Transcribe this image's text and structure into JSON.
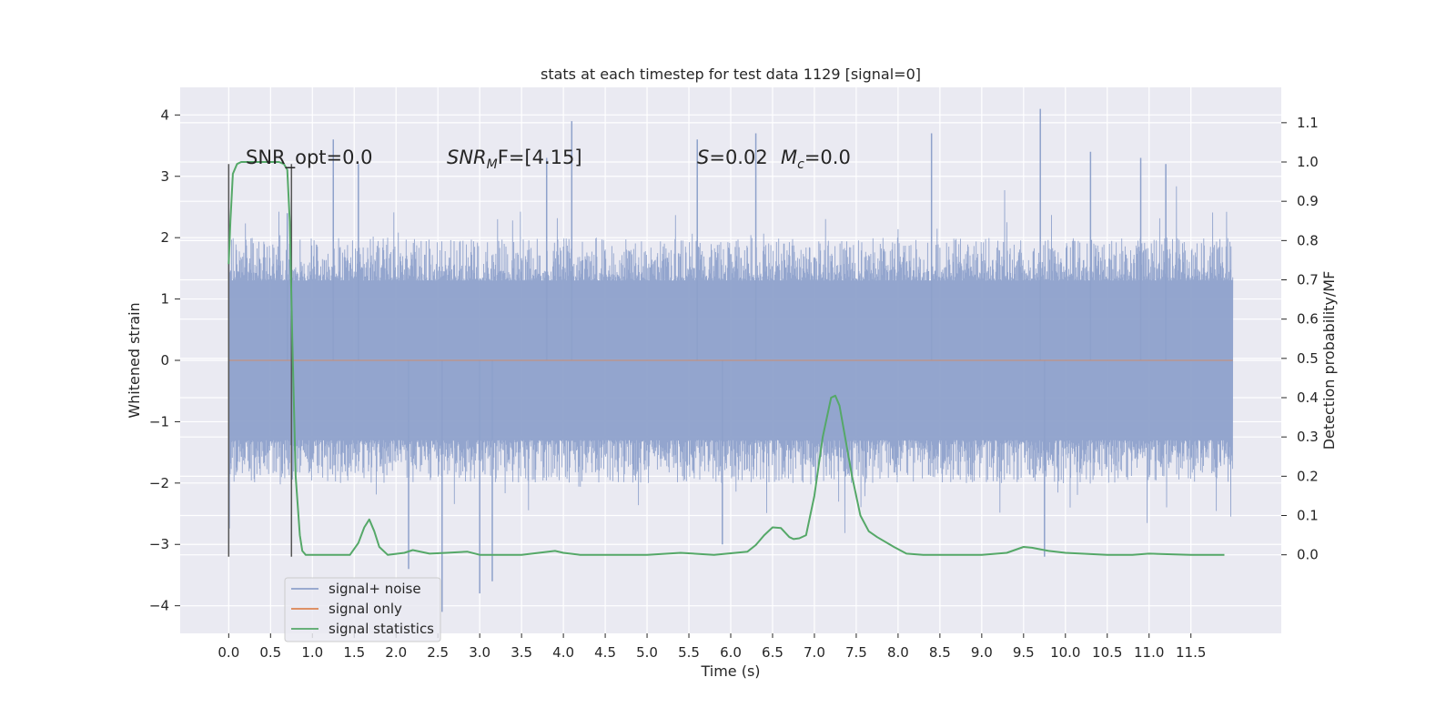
{
  "chart_data": {
    "type": "line",
    "title": "stats at each timestep for test data 1129 [signal=0]",
    "xlabel": "Time (s)",
    "ylabel": "Whitened strain",
    "ylabel_right": "Detection probability/MF",
    "xlim": [
      -0.58,
      12.58
    ],
    "ylim": [
      -4.45,
      4.45
    ],
    "ylim_right": [
      -0.2,
      1.19
    ],
    "x_ticks": [
      "0.0",
      "0.5",
      "1.0",
      "1.5",
      "2.0",
      "2.5",
      "3.0",
      "3.5",
      "4.0",
      "4.5",
      "5.0",
      "5.5",
      "6.0",
      "6.5",
      "7.0",
      "7.5",
      "8.0",
      "8.5",
      "9.0",
      "9.5",
      "10.0",
      "10.5",
      "11.0",
      "11.5"
    ],
    "y_ticks_left": [
      "4",
      "3",
      "2",
      "1",
      "0",
      "−1",
      "−2",
      "−3",
      "−4"
    ],
    "y_ticks_right": [
      "1.1",
      "1.0",
      "0.9",
      "0.8",
      "0.7",
      "0.6",
      "0.5",
      "0.4",
      "0.3",
      "0.2",
      "0.1",
      "0.0"
    ],
    "grid": true,
    "legend": {
      "placement": "lower-left",
      "entries": [
        "signal+ noise",
        "signal only",
        "signal statistics"
      ]
    },
    "annotations": {
      "snr_opt": "SNR_opt=0.0",
      "snr_mf_main": "SNR",
      "snr_mf_sub": "M",
      "snr_mf_rest": "F=[4.15]",
      "s_label": "S",
      "s_value": "=0.02",
      "mc_label": "M",
      "mc_sub": "c",
      "mc_value": "=0.0"
    },
    "noise_series": {
      "name": "signal+ noise",
      "x_range": [
        0.0,
        12.0
      ],
      "dense_band": [
        -1.3,
        1.3
      ],
      "typical_envelope": [
        -2.0,
        2.0
      ],
      "extreme_peaks": [
        {
          "x": 0.7,
          "y": 2.4
        },
        {
          "x": 1.55,
          "y": 3.2
        },
        {
          "x": 2.55,
          "y": -4.1
        },
        {
          "x": 3.0,
          "y": -3.8
        },
        {
          "x": 3.15,
          "y": -3.6
        },
        {
          "x": 4.1,
          "y": 3.9
        },
        {
          "x": 2.15,
          "y": -3.4
        },
        {
          "x": 5.6,
          "y": 3.6
        },
        {
          "x": 6.3,
          "y": 3.7
        },
        {
          "x": 9.7,
          "y": 4.1
        },
        {
          "x": 9.75,
          "y": -3.2
        },
        {
          "x": 10.3,
          "y": 3.4
        },
        {
          "x": 8.4,
          "y": 3.7
        },
        {
          "x": 11.2,
          "y": 3.2
        },
        {
          "x": 1.25,
          "y": 3.6
        },
        {
          "x": 10.9,
          "y": 3.3
        },
        {
          "x": 5.9,
          "y": -3.0
        },
        {
          "x": 3.8,
          "y": 3.3
        }
      ]
    },
    "signal_only": {
      "name": "signal only",
      "x": [
        0.0,
        12.0
      ],
      "y": [
        0.0,
        0.0
      ]
    },
    "signal_statistics": {
      "name": "signal statistics",
      "x": [
        0.0,
        0.02,
        0.05,
        0.1,
        0.15,
        0.2,
        0.3,
        0.5,
        0.6,
        0.66,
        0.7,
        0.73,
        0.76,
        0.8,
        0.85,
        0.88,
        0.92,
        1.0,
        1.2,
        1.45,
        1.55,
        1.62,
        1.68,
        1.74,
        1.8,
        1.9,
        2.1,
        2.2,
        2.4,
        2.6,
        2.85,
        3.0,
        3.5,
        3.9,
        4.0,
        4.2,
        5.0,
        5.4,
        5.8,
        6.2,
        6.3,
        6.4,
        6.5,
        6.6,
        6.7,
        6.75,
        6.82,
        6.9,
        7.0,
        7.1,
        7.2,
        7.25,
        7.3,
        7.35,
        7.45,
        7.55,
        7.65,
        7.75,
        7.95,
        8.1,
        8.3,
        8.6,
        9.0,
        9.3,
        9.5,
        9.6,
        9.8,
        10.0,
        10.5,
        10.8,
        11.0,
        11.5,
        11.9
      ],
      "y": [
        0.74,
        0.85,
        0.97,
        0.995,
        1.0,
        1.0,
        1.0,
        1.0,
        1.0,
        0.995,
        0.98,
        0.85,
        0.55,
        0.2,
        0.05,
        0.01,
        0.0,
        0.0,
        0.0,
        0.0,
        0.03,
        0.07,
        0.09,
        0.06,
        0.02,
        0.0,
        0.005,
        0.012,
        0.003,
        0.005,
        0.008,
        0.0,
        0.0,
        0.01,
        0.005,
        0.0,
        0.0,
        0.005,
        0.0,
        0.008,
        0.025,
        0.05,
        0.07,
        0.068,
        0.045,
        0.04,
        0.042,
        0.05,
        0.15,
        0.3,
        0.4,
        0.405,
        0.38,
        0.32,
        0.2,
        0.1,
        0.06,
        0.045,
        0.02,
        0.003,
        0.0,
        0.0,
        0.0,
        0.005,
        0.02,
        0.018,
        0.01,
        0.005,
        0.0,
        0.0,
        0.003,
        0.0,
        0.0
      ]
    },
    "vertical_markers": [
      {
        "x": 0.0,
        "y_range": [
          -3.2,
          3.2
        ]
      },
      {
        "x": 0.75,
        "y_range": [
          -3.2,
          3.2
        ]
      }
    ],
    "colors": {
      "background": "#eaeaf2",
      "grid": "#ffffff",
      "noise": "#8ea1cb",
      "signal_only": "#dd8452",
      "statistics": "#55a868",
      "markers": "#555555"
    }
  }
}
